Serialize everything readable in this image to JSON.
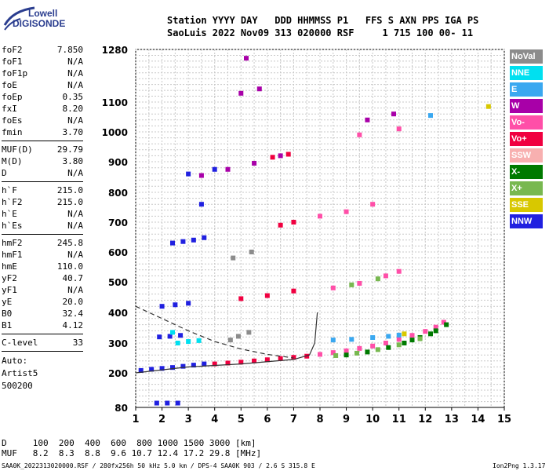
{
  "logo": {
    "line1": "Lowell",
    "line2": "DIGISONDE"
  },
  "header": {
    "line1": "Station YYYY DAY   DDD HHMMSS P1   FFS S AXN PPS IGA PS",
    "line2": "SaoLuis 2022 Nov09 313 020000 RSF     1 715 100 00- 11"
  },
  "params_groups": [
    [
      {
        "name": "foF2",
        "value": "7.850"
      },
      {
        "name": "foF1",
        "value": "N/A"
      },
      {
        "name": "foF1p",
        "value": "N/A"
      },
      {
        "name": "foE",
        "value": "N/A"
      },
      {
        "name": "foEp",
        "value": "0.35"
      },
      {
        "name": "fxI",
        "value": "8.20"
      },
      {
        "name": "foEs",
        "value": "N/A"
      },
      {
        "name": "fmin",
        "value": "3.70"
      }
    ],
    [
      {
        "name": "MUF(D)",
        "value": "29.79"
      },
      {
        "name": "M(D)",
        "value": "3.80"
      },
      {
        "name": "D",
        "value": "N/A"
      }
    ],
    [
      {
        "name": "h`F",
        "value": "215.0"
      },
      {
        "name": "h`F2",
        "value": "215.0"
      },
      {
        "name": "h`E",
        "value": "N/A"
      },
      {
        "name": "h`Es",
        "value": "N/A"
      }
    ],
    [
      {
        "name": "hmF2",
        "value": "245.8"
      },
      {
        "name": "hmF1",
        "value": "N/A"
      },
      {
        "name": "hmE",
        "value": "110.0"
      },
      {
        "name": "yF2",
        "value": "40.7"
      },
      {
        "name": "yF1",
        "value": "N/A"
      },
      {
        "name": "yE",
        "value": "20.0"
      },
      {
        "name": "B0",
        "value": "32.4"
      },
      {
        "name": "B1",
        "value": "4.12"
      }
    ],
    [
      {
        "name": "C-level",
        "value": "33"
      }
    ]
  ],
  "auto": {
    "line1": "Auto:",
    "line2": "Artist5",
    "line3": "500200"
  },
  "legend": [
    {
      "label": "NoVal",
      "color": "#8c8c8c"
    },
    {
      "label": "NNE",
      "color": "#00e0f0"
    },
    {
      "label": "E",
      "color": "#3aa8f0"
    },
    {
      "label": "W",
      "color": "#a800a8"
    },
    {
      "label": "Vo-",
      "color": "#ff4fa8"
    },
    {
      "label": "Vo+",
      "color": "#f00040"
    },
    {
      "label": "SSW",
      "color": "#f8b0b0"
    },
    {
      "label": "X-",
      "color": "#007a00"
    },
    {
      "label": "X+",
      "color": "#78b850"
    },
    {
      "label": "SSE",
      "color": "#d8c800"
    },
    {
      "label": "NNW",
      "color": "#2020e0"
    }
  ],
  "muf_table": {
    "d_line": "D     100  200  400  600  800 1000 1500 3000 [km]",
    "muf_line": "MUF   8.2  8.3  8.8  9.6 10.7 12.4 17.2 29.8 [MHz]"
  },
  "footer": {
    "left": "SAA0K_2022313020000.RSF / 280fx256h 50 kHz 5.0 km / DPS-4 SAA0K 903 / 2.6 S 315.8 E",
    "right": "Ion2Png 1.3.17"
  },
  "chart_data": {
    "type": "scatter",
    "xlabel": "",
    "ylabel": "",
    "xlim": [
      1,
      15
    ],
    "ylim": [
      80,
      1280
    ],
    "x_ticks": [
      1,
      2,
      3,
      4,
      5,
      6,
      7,
      8,
      9,
      10,
      11,
      12,
      13,
      14,
      15
    ],
    "y_ticks": [
      80,
      200,
      300,
      400,
      500,
      600,
      700,
      800,
      900,
      1000,
      1100,
      1280
    ],
    "grid": true,
    "legend_placement": "right",
    "series": [
      {
        "name": "NNW",
        "color": "#2020e0",
        "points": [
          [
            1.2,
            208
          ],
          [
            1.6,
            212
          ],
          [
            2.0,
            215
          ],
          [
            2.4,
            218
          ],
          [
            2.8,
            222
          ],
          [
            3.2,
            226
          ],
          [
            3.6,
            230
          ],
          [
            1.8,
            95
          ],
          [
            2.2,
            95
          ],
          [
            2.6,
            95
          ],
          [
            1.9,
            320
          ],
          [
            2.3,
            322
          ],
          [
            2.7,
            325
          ],
          [
            2.0,
            420
          ],
          [
            2.5,
            425
          ],
          [
            3.0,
            430
          ],
          [
            2.4,
            630
          ],
          [
            2.8,
            635
          ],
          [
            3.2,
            640
          ],
          [
            3.6,
            648
          ],
          [
            3.0,
            860
          ],
          [
            4.0,
            875
          ],
          [
            3.5,
            760
          ]
        ]
      },
      {
        "name": "Vo+",
        "color": "#f00040",
        "points": [
          [
            4.0,
            230
          ],
          [
            4.5,
            233
          ],
          [
            5.0,
            236
          ],
          [
            5.5,
            240
          ],
          [
            6.0,
            244
          ],
          [
            6.5,
            248
          ],
          [
            7.0,
            252
          ],
          [
            7.5,
            256
          ],
          [
            5.0,
            445
          ],
          [
            6.0,
            455
          ],
          [
            7.0,
            470
          ],
          [
            6.5,
            690
          ],
          [
            7.0,
            700
          ],
          [
            6.2,
            915
          ],
          [
            6.8,
            925
          ]
        ]
      },
      {
        "name": "Vo-",
        "color": "#ff4fa8",
        "points": [
          [
            8.0,
            262
          ],
          [
            8.5,
            268
          ],
          [
            9.0,
            274
          ],
          [
            9.5,
            282
          ],
          [
            10.0,
            290
          ],
          [
            10.5,
            300
          ],
          [
            11.0,
            312
          ],
          [
            11.5,
            325
          ],
          [
            12.0,
            338
          ],
          [
            12.4,
            352
          ],
          [
            12.7,
            368
          ],
          [
            8.5,
            480
          ],
          [
            9.5,
            495
          ],
          [
            10.5,
            520
          ],
          [
            11.0,
            535
          ],
          [
            8.0,
            720
          ],
          [
            9.0,
            735
          ],
          [
            10.0,
            760
          ],
          [
            9.5,
            990
          ],
          [
            11.0,
            1010
          ]
        ]
      },
      {
        "name": "X-",
        "color": "#007a00",
        "points": [
          [
            9.0,
            260
          ],
          [
            9.8,
            270
          ],
          [
            10.6,
            285
          ],
          [
            11.2,
            300
          ],
          [
            11.8,
            318
          ],
          [
            12.4,
            340
          ],
          [
            12.8,
            360
          ],
          [
            12.2,
            330
          ],
          [
            11.5,
            310
          ]
        ]
      },
      {
        "name": "X+",
        "color": "#78b850",
        "points": [
          [
            8.6,
            258
          ],
          [
            9.4,
            266
          ],
          [
            10.2,
            278
          ],
          [
            11.0,
            294
          ],
          [
            11.8,
            314
          ],
          [
            9.2,
            490
          ],
          [
            10.2,
            510
          ]
        ]
      },
      {
        "name": "W",
        "color": "#a800a8",
        "points": [
          [
            3.5,
            855
          ],
          [
            4.5,
            875
          ],
          [
            5.5,
            895
          ],
          [
            6.5,
            920
          ],
          [
            5.0,
            1130
          ],
          [
            5.7,
            1145
          ],
          [
            5.2,
            1250
          ],
          [
            9.8,
            1040
          ],
          [
            10.8,
            1060
          ]
        ]
      },
      {
        "name": "E",
        "color": "#3aa8f0",
        "points": [
          [
            8.5,
            310
          ],
          [
            9.2,
            312
          ],
          [
            10.0,
            318
          ],
          [
            10.6,
            322
          ],
          [
            11.0,
            326
          ],
          [
            12.2,
            1055
          ]
        ]
      },
      {
        "name": "NNE",
        "color": "#00e0f0",
        "points": [
          [
            2.6,
            300
          ],
          [
            3.0,
            305
          ],
          [
            3.4,
            308
          ],
          [
            2.4,
            335
          ]
        ]
      },
      {
        "name": "SSE",
        "color": "#d8c800",
        "points": [
          [
            14.4,
            1085
          ],
          [
            11.2,
            330
          ]
        ]
      },
      {
        "name": "NoVal",
        "color": "#8c8c8c",
        "points": [
          [
            4.6,
            310
          ],
          [
            4.9,
            322
          ],
          [
            5.3,
            335
          ],
          [
            4.7,
            580
          ],
          [
            5.4,
            600
          ]
        ]
      }
    ]
  }
}
